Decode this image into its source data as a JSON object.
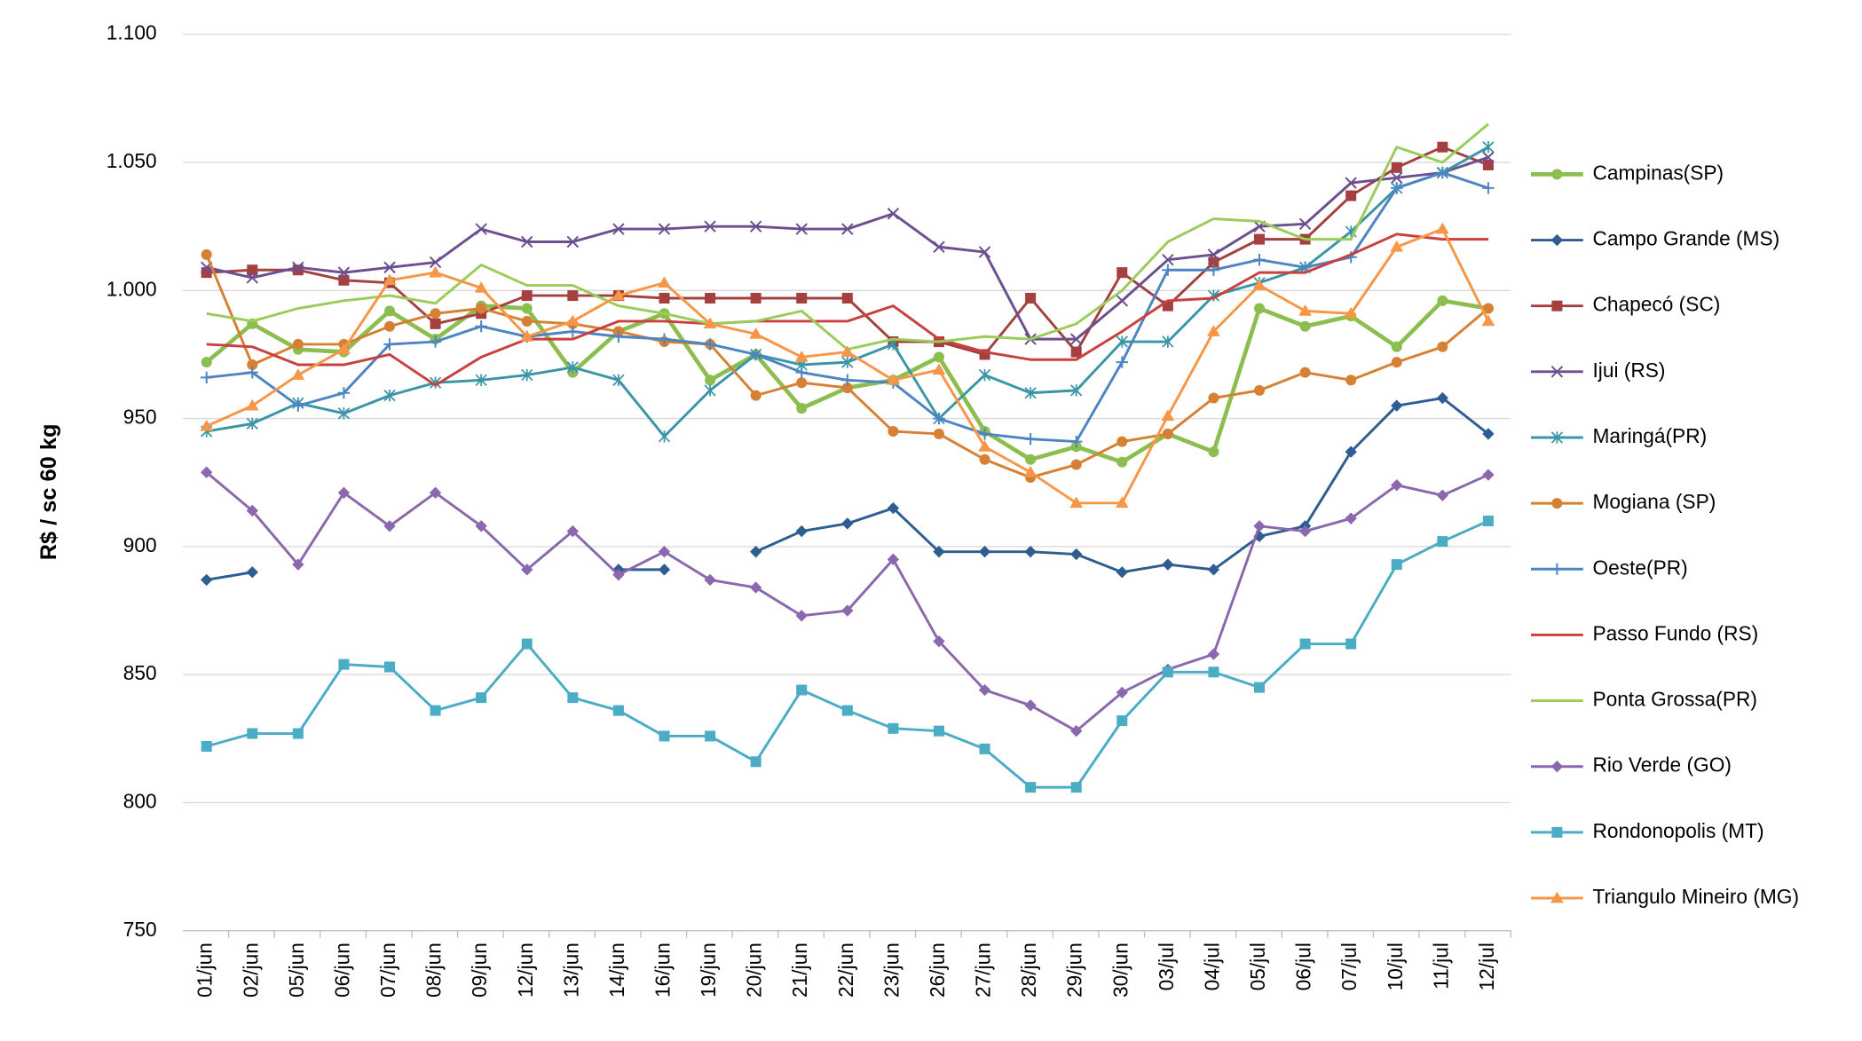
{
  "chart_data": {
    "type": "line",
    "y_label": "R$ / sc 60 kg",
    "categories": [
      "01/jun",
      "02/jun",
      "05/jun",
      "06/jun",
      "07/jun",
      "08/jun",
      "09/jun",
      "12/jun",
      "13/jun",
      "14/jun",
      "16/jun",
      "19/jun",
      "20/jun",
      "21/jun",
      "22/jun",
      "23/jun",
      "26/jun",
      "27/jun",
      "28/jun",
      "29/jun",
      "30/jun",
      "03/jul",
      "04/jul",
      "05/jul",
      "06/jul",
      "07/jul",
      "10/jul",
      "11/jul",
      "12/jul"
    ],
    "ylim": [
      750,
      1100
    ],
    "yticks": [
      750,
      800,
      850,
      900,
      950,
      {
        "value": 1000,
        "label": "1.000"
      },
      {
        "value": 1050,
        "label": "1.050"
      },
      {
        "value": 1100,
        "label": "1.100"
      }
    ],
    "grid": true,
    "legend": "right",
    "series": [
      {
        "name": "Campinas(SP)",
        "color": "#8bbd4f",
        "marker": "circle",
        "values": [
          972,
          987,
          977,
          976,
          992,
          981,
          994,
          993,
          968,
          984,
          991,
          965,
          975,
          954,
          962,
          965,
          974,
          945,
          934,
          939,
          933,
          944,
          937,
          993,
          986,
          990,
          978,
          996,
          993
        ]
      },
      {
        "name": "Campo Grande (MS)",
        "color": "#2e5d91",
        "marker": "diamond",
        "values": [
          887,
          890,
          null,
          null,
          null,
          null,
          null,
          null,
          null,
          891,
          891,
          null,
          898,
          906,
          909,
          915,
          898,
          898,
          898,
          897,
          890,
          893,
          891,
          904,
          908,
          937,
          955,
          958,
          944
        ]
      },
      {
        "name": "Chapecó (SC)",
        "color": "#a4403f",
        "marker": "square",
        "values": [
          1007,
          1008,
          1008,
          1004,
          1003,
          987,
          991,
          998,
          998,
          998,
          997,
          997,
          997,
          997,
          997,
          980,
          980,
          975,
          997,
          976,
          1007,
          994,
          1011,
          1020,
          1020,
          1037,
          1048,
          1056,
          1049
        ]
      },
      {
        "name": "Ijui (RS)",
        "color": "#6c4f8f",
        "marker": "x",
        "values": [
          1009,
          1005,
          1009,
          1007,
          1009,
          1011,
          1024,
          1019,
          1019,
          1024,
          1024,
          1025,
          1025,
          1024,
          1024,
          1030,
          1017,
          1015,
          981,
          981,
          996,
          1012,
          1014,
          1025,
          1026,
          1042,
          1044,
          1046,
          1052
        ]
      },
      {
        "name": "Maringá(PR)",
        "color": "#3a95a6",
        "marker": "star",
        "values": [
          945,
          948,
          956,
          952,
          959,
          964,
          965,
          967,
          970,
          965,
          943,
          961,
          975,
          971,
          972,
          979,
          950,
          967,
          960,
          961,
          980,
          980,
          998,
          1003,
          1009,
          1023,
          1040,
          1046,
          1056
        ]
      },
      {
        "name": "Mogiana (SP)",
        "color": "#d58032",
        "marker": "circle",
        "values": [
          1014,
          971,
          979,
          979,
          986,
          991,
          993,
          988,
          987,
          984,
          980,
          979,
          959,
          964,
          962,
          945,
          944,
          934,
          927,
          932,
          941,
          944,
          958,
          961,
          968,
          965,
          972,
          978,
          993
        ]
      },
      {
        "name": "Oeste(PR)",
        "color": "#4d84c2",
        "marker": "plus",
        "values": [
          966,
          968,
          955,
          960,
          979,
          980,
          986,
          982,
          984,
          982,
          981,
          979,
          975,
          968,
          965,
          964,
          950,
          944,
          942,
          941,
          972,
          1008,
          1008,
          1012,
          1009,
          1013,
          1040,
          1046,
          1040
        ]
      },
      {
        "name": "Passo Fundo (RS)",
        "color": "#c9403d",
        "marker": "none",
        "values": [
          979,
          978,
          971,
          971,
          975,
          963,
          974,
          981,
          981,
          988,
          988,
          987,
          988,
          988,
          988,
          994,
          981,
          976,
          973,
          973,
          984,
          996,
          997,
          1007,
          1007,
          1014,
          1022,
          1020,
          1020
        ]
      },
      {
        "name": "Ponta Grossa(PR)",
        "color": "#9acc5a",
        "marker": "none",
        "values": [
          991,
          988,
          993,
          996,
          998,
          995,
          1010,
          1002,
          1002,
          994,
          991,
          987,
          988,
          992,
          977,
          981,
          980,
          982,
          981,
          987,
          1000,
          1019,
          1028,
          1027,
          1020,
          1020,
          1056,
          1050,
          1065
        ]
      },
      {
        "name": "Rio Verde (GO)",
        "color": "#8b68ae",
        "marker": "diamond",
        "values": [
          929,
          914,
          893,
          921,
          908,
          921,
          908,
          891,
          906,
          889,
          898,
          887,
          884,
          873,
          875,
          895,
          863,
          844,
          838,
          828,
          843,
          852,
          858,
          908,
          906,
          911,
          924,
          920,
          928
        ]
      },
      {
        "name": "Rondonopolis (MT)",
        "color": "#4bacc6",
        "marker": "square",
        "values": [
          822,
          827,
          827,
          854,
          853,
          836,
          841,
          862,
          841,
          836,
          826,
          826,
          816,
          844,
          836,
          829,
          828,
          821,
          806,
          806,
          832,
          851,
          851,
          845,
          862,
          862,
          893,
          902,
          910
        ]
      },
      {
        "name": "Triangulo Mineiro (MG)",
        "color": "#f79646",
        "marker": "triangle",
        "values": [
          947,
          955,
          967,
          977,
          1004,
          1007,
          1001,
          982,
          988,
          998,
          1003,
          987,
          983,
          974,
          976,
          965,
          969,
          939,
          929,
          917,
          917,
          951,
          984,
          1002,
          992,
          991,
          1017,
          1024,
          988
        ]
      }
    ]
  }
}
